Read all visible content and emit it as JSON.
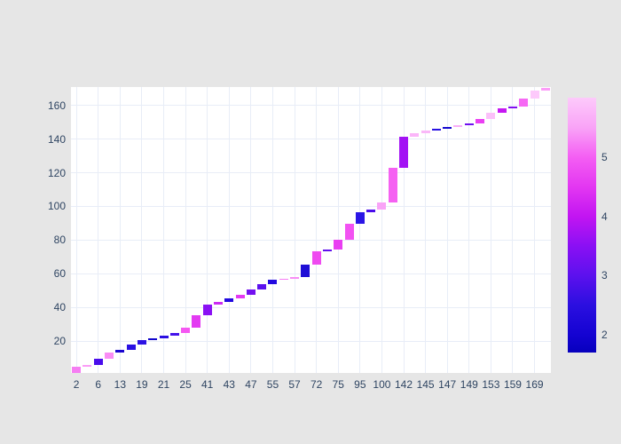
{
  "colors": {
    "paper_bg": "#e6e6e6",
    "plot_bg": "#ffffff",
    "grid": "#e8edf7",
    "tick_text": "#2f4562"
  },
  "chart_data": {
    "type": "bar",
    "subtype": "cumulative-waterfall, one bar per category, color-mapped to colorbar scale",
    "title": "",
    "xlabel": "",
    "ylabel": "",
    "grid": true,
    "legend": "none (continuous colorbar on right)",
    "x_tick_labels": [
      "2",
      "6",
      "13",
      "19",
      "21",
      "25",
      "41",
      "43",
      "47",
      "55",
      "57",
      "72",
      "75",
      "95",
      "100",
      "142",
      "145",
      "147",
      "149",
      "153",
      "159",
      "169"
    ],
    "x_tick_note": "tick labels appear under every second bar (bars 1,3,5,...,43 of 44)",
    "yaxis": {
      "range": [
        1,
        171
      ],
      "ticks": [
        20,
        40,
        60,
        80,
        100,
        120,
        140,
        160
      ]
    },
    "bars": [
      {
        "start": 1.0,
        "end": 4.5,
        "color": "#f57df2"
      },
      {
        "start": 4.5,
        "end": 6.0,
        "color": "#fb9df7"
      },
      {
        "start": 6.0,
        "end": 9.5,
        "color": "#4a0cec"
      },
      {
        "start": 9.5,
        "end": 13.0,
        "color": "#fa8cf5"
      },
      {
        "start": 13.0,
        "end": 14.7,
        "color": "#1a05cf"
      },
      {
        "start": 14.7,
        "end": 18.0,
        "color": "#2a10e3"
      },
      {
        "start": 18.0,
        "end": 20.5,
        "color": "#2c12e4"
      },
      {
        "start": 20.5,
        "end": 21.6,
        "color": "#1105cc"
      },
      {
        "start": 21.6,
        "end": 23.2,
        "color": "#2b0fe2"
      },
      {
        "start": 23.2,
        "end": 24.7,
        "color": "#4312ea"
      },
      {
        "start": 24.7,
        "end": 28.0,
        "color": "#f557f2"
      },
      {
        "start": 28.0,
        "end": 35.3,
        "color": "#e33af2"
      },
      {
        "start": 35.3,
        "end": 41.6,
        "color": "#8a10f4"
      },
      {
        "start": 41.6,
        "end": 43.2,
        "color": "#cc2bf2"
      },
      {
        "start": 43.2,
        "end": 45.3,
        "color": "#2209e0"
      },
      {
        "start": 45.3,
        "end": 47.4,
        "color": "#e438f2"
      },
      {
        "start": 47.4,
        "end": 50.5,
        "color": "#7311f0"
      },
      {
        "start": 50.5,
        "end": 54.0,
        "color": "#5c11ee"
      },
      {
        "start": 54.0,
        "end": 56.3,
        "color": "#2209e0"
      },
      {
        "start": 56.3,
        "end": 57.0,
        "color": "#f77df5"
      },
      {
        "start": 57.0,
        "end": 57.9,
        "color": "#f88df5"
      },
      {
        "start": 57.9,
        "end": 65.5,
        "color": "#1f0ed6"
      },
      {
        "start": 65.5,
        "end": 73.2,
        "color": "#ef4af0"
      },
      {
        "start": 73.2,
        "end": 74.2,
        "color": "#6110ee"
      },
      {
        "start": 74.2,
        "end": 80.0,
        "color": "#e93ef2"
      },
      {
        "start": 80.0,
        "end": 89.5,
        "color": "#f251f2"
      },
      {
        "start": 89.5,
        "end": 96.3,
        "color": "#2b15e6"
      },
      {
        "start": 96.3,
        "end": 97.9,
        "color": "#4a0deb"
      },
      {
        "start": 97.9,
        "end": 102.6,
        "color": "#f9a3f7"
      },
      {
        "start": 102.6,
        "end": 123.2,
        "color": "#f561f2"
      },
      {
        "start": 123.2,
        "end": 141.6,
        "color": "#a312f4"
      },
      {
        "start": 141.6,
        "end": 143.7,
        "color": "#fbb5f9"
      },
      {
        "start": 143.7,
        "end": 145.3,
        "color": "#fab8f8"
      },
      {
        "start": 145.3,
        "end": 146.3,
        "color": "#2912e2"
      },
      {
        "start": 146.3,
        "end": 147.4,
        "color": "#1508ce"
      },
      {
        "start": 147.4,
        "end": 148.4,
        "color": "#f9aef7"
      },
      {
        "start": 148.4,
        "end": 149.5,
        "color": "#6f10f0"
      },
      {
        "start": 149.5,
        "end": 152.1,
        "color": "#ea3ff2"
      },
      {
        "start": 152.1,
        "end": 155.8,
        "color": "#fbc0f9"
      },
      {
        "start": 155.8,
        "end": 158.1,
        "color": "#c518f2"
      },
      {
        "start": 158.1,
        "end": 159.5,
        "color": "#8010f0"
      },
      {
        "start": 159.5,
        "end": 163.9,
        "color": "#f668f4"
      },
      {
        "start": 163.9,
        "end": 168.9,
        "color": "#fdc9fb"
      },
      {
        "start": 168.9,
        "end": 170.5,
        "color": "#fc9df8"
      }
    ],
    "colorbar": {
      "range": [
        1.7,
        6.01
      ],
      "ticks": [
        2,
        3,
        4,
        5
      ],
      "gradient": [
        {
          "v": 1.7,
          "c": "#0700bd"
        },
        {
          "v": 2.0,
          "c": "#1403d2"
        },
        {
          "v": 2.5,
          "c": "#2b0fe0"
        },
        {
          "v": 3.0,
          "c": "#5c11ee"
        },
        {
          "v": 3.5,
          "c": "#8a10f4"
        },
        {
          "v": 4.0,
          "c": "#c215f2"
        },
        {
          "v": 4.5,
          "c": "#e337f2"
        },
        {
          "v": 5.0,
          "c": "#f45ef3"
        },
        {
          "v": 5.5,
          "c": "#f9a3f7"
        },
        {
          "v": 6.0,
          "c": "#fdc9fb"
        }
      ]
    }
  }
}
